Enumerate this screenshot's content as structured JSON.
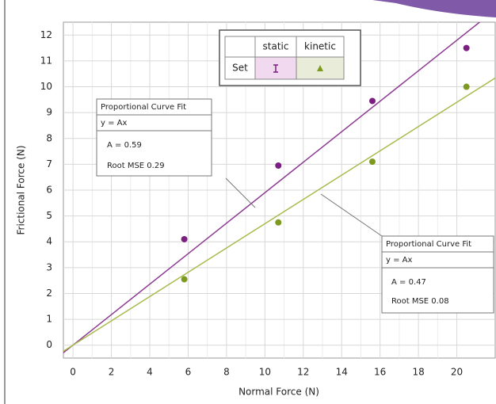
{
  "chart_data": {
    "type": "scatter",
    "xlabel": "Normal Force (N)",
    "ylabel": "Frictional Force (N)",
    "xlim": [
      -0.5,
      22
    ],
    "ylim": [
      -0.5,
      12.5
    ],
    "xticks": [
      0,
      2,
      4,
      6,
      8,
      10,
      12,
      14,
      16,
      18,
      20
    ],
    "yticks": [
      0,
      1,
      2,
      3,
      4,
      5,
      6,
      7,
      8,
      9,
      10,
      11,
      12
    ],
    "grid": true,
    "legend_row_label": "Set",
    "series": [
      {
        "name": "static",
        "color": "#7b1f80",
        "line_color": "#8c3b92",
        "x": [
          5.8,
          10.7,
          15.6,
          20.5
        ],
        "values": [
          4.1,
          6.95,
          9.45,
          11.5
        ]
      },
      {
        "name": "kinetic",
        "color": "#7d9a1f",
        "line_color": "#a9ba4c",
        "x": [
          5.8,
          10.7,
          15.6,
          20.5
        ],
        "values": [
          2.55,
          4.75,
          7.1,
          10.0
        ]
      }
    ],
    "fits": [
      {
        "title": "Proportional Curve Fit",
        "equation": "y = Ax",
        "A": 0.59,
        "A_label": "A = 0.59",
        "rmse_label": "Root MSE  0.29"
      },
      {
        "title": "Proportional Curve Fit",
        "equation": "y = Ax",
        "A": 0.47,
        "A_label": "A = 0.47",
        "rmse_label": "Root MSE  0.08"
      }
    ]
  }
}
